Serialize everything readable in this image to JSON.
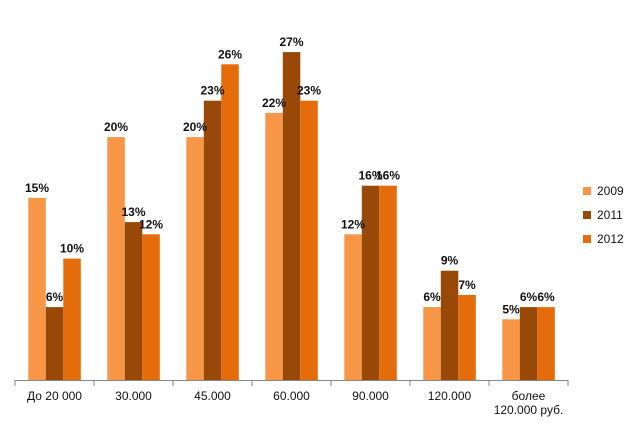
{
  "chart_data": {
    "type": "bar",
    "title": "",
    "xlabel": "",
    "ylabel": "",
    "ylim": [
      0,
      28
    ],
    "grid": false,
    "legend_position": "right",
    "categories": [
      [
        "До 20 000"
      ],
      [
        "30.000"
      ],
      [
        "45.000"
      ],
      [
        "60.000"
      ],
      [
        "90.000"
      ],
      [
        "120.000"
      ],
      [
        "более",
        "120.000 руб."
      ]
    ],
    "series": [
      {
        "name": "2009",
        "color": "#F79646",
        "values": [
          15,
          20,
          20,
          22,
          12,
          6,
          5
        ],
        "labels": [
          "15%",
          "20%",
          "20%",
          "22%",
          "12%",
          "6%",
          "5%"
        ]
      },
      {
        "name": "2011",
        "color": "#984807",
        "values": [
          6,
          13,
          23,
          27,
          16,
          9,
          6
        ],
        "labels": [
          "6%",
          "13%",
          "23%",
          "27%",
          "16%",
          "9%",
          "6%"
        ]
      },
      {
        "name": "2012",
        "color": "#E46C0A",
        "values": [
          10,
          12,
          26,
          23,
          16,
          7,
          6
        ],
        "labels": [
          "10%",
          "12%",
          "26%",
          "23%",
          "16%",
          "7%",
          "6%"
        ]
      }
    ]
  }
}
